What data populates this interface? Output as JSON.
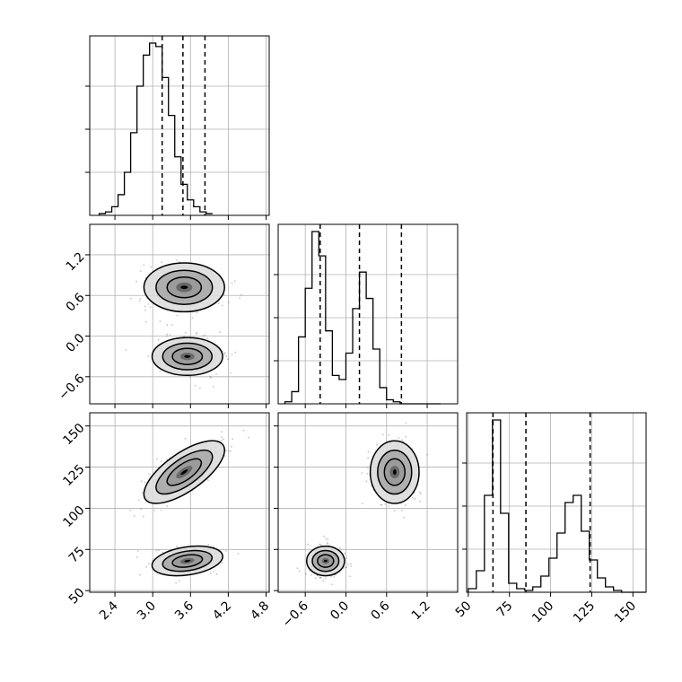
{
  "chart_data": {
    "type": "corner",
    "title": "",
    "grid": true,
    "colors": {
      "line": "#000000",
      "grid": "#b0b0b0",
      "scatter": "#555555",
      "fill_light": "#dddddd",
      "fill_mid": "#aaaaaa",
      "fill_dark": "#666666"
    },
    "parameters": [
      {
        "key": "p0",
        "range": [
          2.0,
          4.85
        ],
        "ticks": [
          "2.4",
          "3.0",
          "3.6",
          "4.2",
          "4.8"
        ],
        "quantiles": [
          3.15,
          3.48,
          3.83
        ],
        "hist": {
          "bin_start": 2.15,
          "bin_width": 0.1,
          "counts": [
            1,
            2,
            5,
            12,
            25,
            48,
            75,
            93,
            100,
            98,
            80,
            58,
            34,
            18,
            9,
            5,
            2,
            1
          ]
        }
      },
      {
        "key": "p1",
        "range": [
          -1.0,
          1.65
        ],
        "ticks": [
          "-0.6",
          "0.0",
          "0.6",
          "1.2"
        ],
        "quantiles": [
          -0.38,
          0.2,
          0.82
        ],
        "hist": {
          "bin_start": -0.9,
          "bin_width": 0.1,
          "counts": [
            1,
            6,
            33,
            57,
            85,
            73,
            36,
            14,
            12,
            25,
            47,
            65,
            52,
            27,
            8,
            2,
            1,
            0,
            0,
            0,
            0,
            0,
            0
          ]
        }
      },
      {
        "key": "p2",
        "range": [
          49.0,
          158.0
        ],
        "ticks": [
          "50",
          "75",
          "100",
          "125",
          "150"
        ],
        "quantiles": [
          65,
          85,
          124
        ],
        "hist": {
          "bin_start": 50,
          "bin_width": 4.9,
          "counts": [
            2,
            12,
            54,
            96,
            44,
            5,
            2,
            1,
            3,
            9,
            19,
            33,
            50,
            54,
            34,
            18,
            8,
            3,
            1,
            0,
            0,
            0
          ]
        }
      }
    ],
    "clusters": [
      {
        "p0": 3.5,
        "p1": 0.72,
        "p2": 122,
        "s0": 0.32,
        "s1": 0.18,
        "s2": 9.5,
        "rho02": 0.7,
        "weight": 0.5
      },
      {
        "p0": 3.55,
        "p1": -0.3,
        "p2": 68,
        "s0": 0.28,
        "s1": 0.14,
        "s2": 4.5,
        "rho02": 0.3,
        "weight": 0.5
      }
    ]
  }
}
